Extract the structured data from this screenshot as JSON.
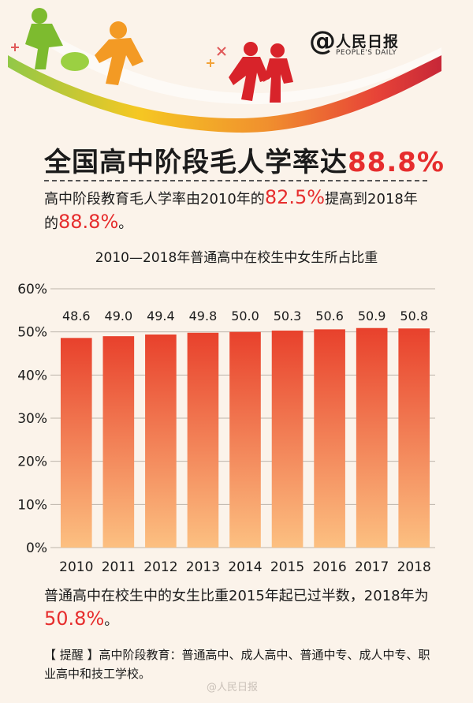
{
  "brand": {
    "at_symbol": "@",
    "name": "人民日报",
    "subtitle": "PEOPLE'S DAILY"
  },
  "headline": {
    "prefix": "全国高中阶段毛人学率达",
    "highlight": "88.8%"
  },
  "intro": {
    "part1": "高中阶段教育毛人学率由2010年的",
    "value1": "82.5%",
    "part2": "提高到2018年的",
    "value2": "88.8%",
    "part3": "。"
  },
  "chart_data": {
    "type": "bar",
    "title": "2010—2018年普通高中在校生中女生所占比重",
    "categories": [
      "2010",
      "2011",
      "2012",
      "2013",
      "2014",
      "2015",
      "2016",
      "2017",
      "2018"
    ],
    "values": [
      48.6,
      49.0,
      49.4,
      49.8,
      50.0,
      50.3,
      50.6,
      50.9,
      50.8
    ],
    "data_labels": [
      "48.6",
      "49.0",
      "49.4",
      "49.8",
      "50.0",
      "50.3",
      "50.6",
      "50.9",
      "50.8"
    ],
    "yticks": [
      "0%",
      "10%",
      "20%",
      "30%",
      "40%",
      "50%",
      "60%"
    ],
    "ylim": [
      0,
      60
    ],
    "xlabel": "",
    "ylabel": "",
    "grid": true,
    "colors": {
      "bar_top": "#e8412c",
      "bar_bottom": "#fcc081",
      "grid": "#bdb4ab",
      "label": "#1b1b1b"
    }
  },
  "summary": {
    "part1": "普通高中在校生中的女生比重2015年起已过半数，2018年为",
    "value": "50.8%",
    "part2": "。"
  },
  "note": {
    "text": "【 提醒 】高中阶段教育：普通高中、成人高中、普通中专、成人中专、职业高中和技工学校。"
  },
  "watermark": "@人民日报"
}
